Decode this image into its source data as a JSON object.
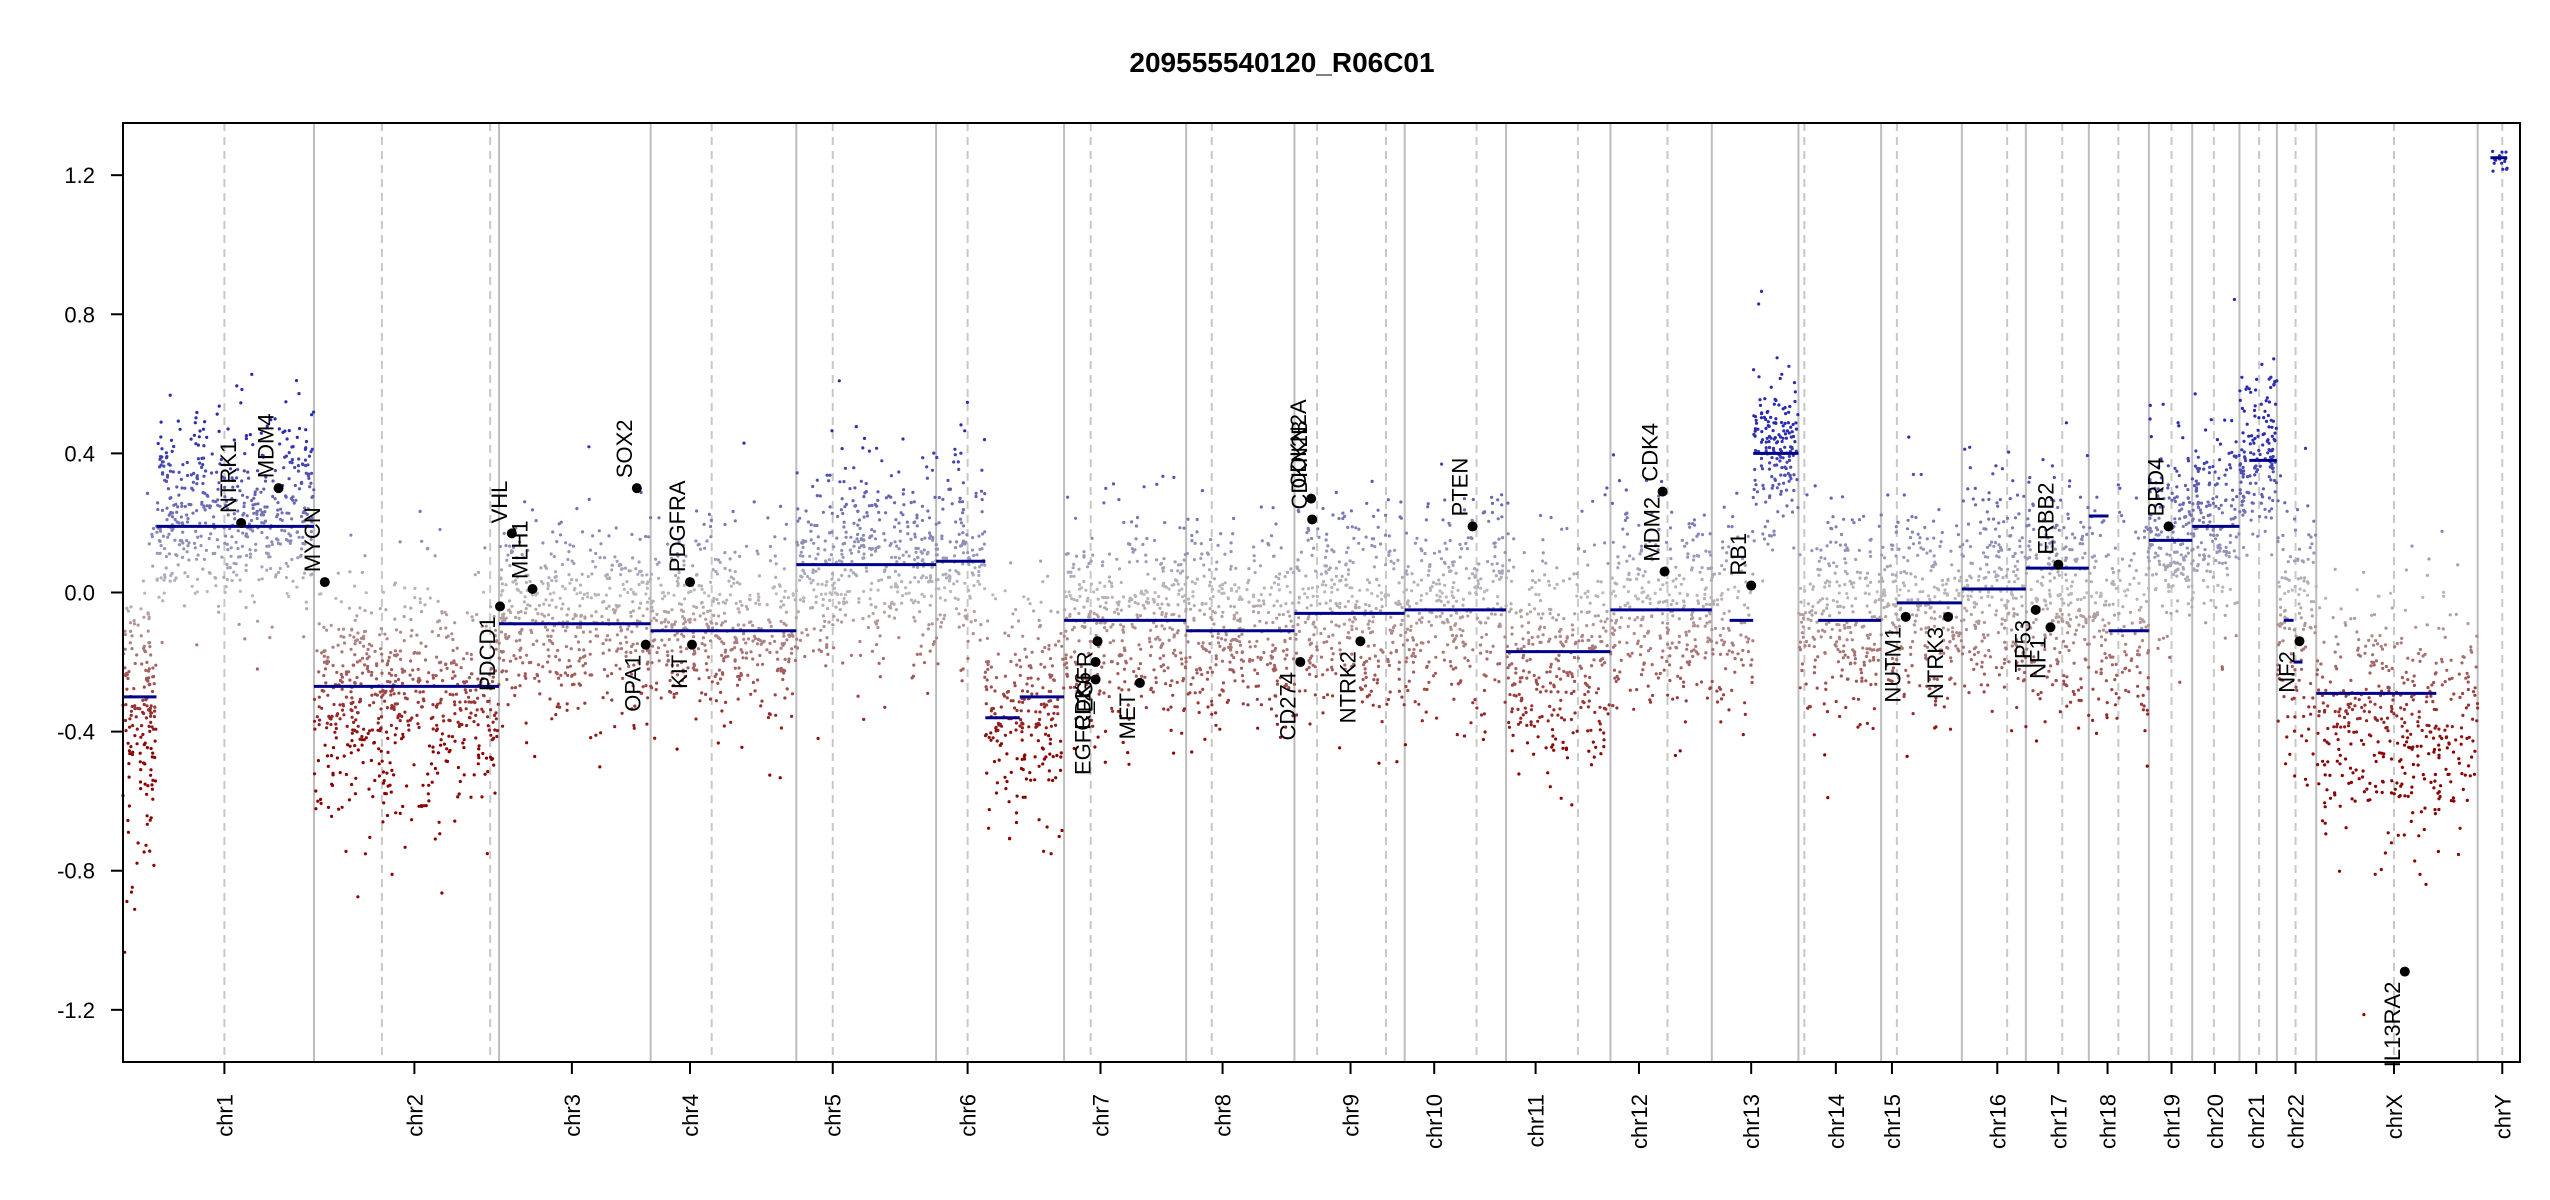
{
  "chart_data": {
    "type": "scatter",
    "title": "209555540120_R06C01",
    "xlabel": "",
    "ylabel": "",
    "ylim": [
      -1.35,
      1.35
    ],
    "yticks": [
      -1.2,
      -0.8,
      -0.4,
      0.0,
      0.4,
      0.8,
      1.2
    ],
    "ytick_labels": [
      "-1.2",
      "-0.8",
      "-0.4",
      "0.0",
      "0.4",
      "0.8",
      "1.2"
    ],
    "colors": {
      "gain": "#2b2bb0",
      "loss": "#8b0000",
      "neutral": "#bbbbbb",
      "segment": "#00008b",
      "gene": "#000000"
    },
    "chromosomes": [
      {
        "name": "chr1",
        "start": 0,
        "end": 194,
        "center": 103
      },
      {
        "name": "chr2",
        "start": 194,
        "end": 382,
        "center": 296
      },
      {
        "name": "chr3",
        "start": 382,
        "end": 536,
        "center": 456
      },
      {
        "name": "chr4",
        "start": 536,
        "end": 684,
        "center": 576
      },
      {
        "name": "chr5",
        "start": 684,
        "end": 826,
        "center": 721
      },
      {
        "name": "chr6",
        "start": 826,
        "end": 956,
        "center": 858
      },
      {
        "name": "chr7",
        "start": 956,
        "end": 1080,
        "center": 993
      },
      {
        "name": "chr8",
        "start": 1080,
        "end": 1190,
        "center": 1117
      },
      {
        "name": "chr9",
        "start": 1190,
        "end": 1302,
        "center": 1247
      },
      {
        "name": "chr10",
        "start": 1302,
        "end": 1405,
        "center": 1332
      },
      {
        "name": "chr11",
        "start": 1405,
        "end": 1511,
        "center": 1435
      },
      {
        "name": "chr12",
        "start": 1511,
        "end": 1614,
        "center": 1540
      },
      {
        "name": "chr13",
        "start": 1614,
        "end": 1702,
        "center": 1654
      },
      {
        "name": "chr14",
        "start": 1702,
        "end": 1786,
        "center": 1740
      },
      {
        "name": "chr15",
        "start": 1786,
        "end": 1868,
        "center": 1797
      },
      {
        "name": "chr16",
        "start": 1868,
        "end": 1933,
        "center": 1904
      },
      {
        "name": "chr17",
        "start": 1933,
        "end": 1997,
        "center": 1966
      },
      {
        "name": "chr18",
        "start": 1997,
        "end": 2058,
        "center": 2016
      },
      {
        "name": "chr19",
        "start": 2058,
        "end": 2102,
        "center": 2081
      },
      {
        "name": "chr20",
        "start": 2102,
        "end": 2150,
        "center": 2125
      },
      {
        "name": "chr21",
        "start": 2150,
        "end": 2188,
        "center": 2167
      },
      {
        "name": "chr22",
        "start": 2188,
        "end": 2228,
        "center": 2207
      },
      {
        "name": "chrX",
        "start": 2228,
        "end": 2392,
        "center": 2307
      },
      {
        "name": "chrY",
        "start": 2392,
        "end": 2435,
        "center": 2417
      }
    ],
    "centromeres": [
      103,
      263,
      373,
      598,
      721,
      858,
      983,
      1106,
      1213,
      1283,
      1375,
      1478,
      1569,
      1708,
      1802,
      1914,
      1970,
      2027,
      2081,
      2124,
      2170,
      2207,
      2307,
      2417
    ],
    "segments": [
      {
        "x0": 0,
        "x1": 34,
        "y": -0.3
      },
      {
        "x0": 34,
        "x1": 194,
        "y": 0.19
      },
      {
        "x0": 194,
        "x1": 382,
        "y": -0.27
      },
      {
        "x0": 382,
        "x1": 536,
        "y": -0.09
      },
      {
        "x0": 536,
        "x1": 684,
        "y": -0.11
      },
      {
        "x0": 684,
        "x1": 826,
        "y": 0.08
      },
      {
        "x0": 826,
        "x1": 876,
        "y": 0.09
      },
      {
        "x0": 876,
        "x1": 911,
        "y": -0.36
      },
      {
        "x0": 911,
        "x1": 956,
        "y": -0.3
      },
      {
        "x0": 956,
        "x1": 1080,
        "y": -0.08
      },
      {
        "x0": 1080,
        "x1": 1190,
        "y": -0.11
      },
      {
        "x0": 1190,
        "x1": 1302,
        "y": -0.06
      },
      {
        "x0": 1302,
        "x1": 1405,
        "y": -0.05
      },
      {
        "x0": 1405,
        "x1": 1511,
        "y": -0.17
      },
      {
        "x0": 1511,
        "x1": 1614,
        "y": -0.05
      },
      {
        "x0": 1632,
        "x1": 1656,
        "y": -0.08
      },
      {
        "x0": 1656,
        "x1": 1702,
        "y": 0.4
      },
      {
        "x0": 1722,
        "x1": 1786,
        "y": -0.08
      },
      {
        "x0": 1802,
        "x1": 1868,
        "y": -0.03
      },
      {
        "x0": 1868,
        "x1": 1933,
        "y": 0.01
      },
      {
        "x0": 1933,
        "x1": 1997,
        "y": 0.07
      },
      {
        "x0": 1997,
        "x1": 2017,
        "y": 0.22
      },
      {
        "x0": 2017,
        "x1": 2058,
        "y": -0.11
      },
      {
        "x0": 2058,
        "x1": 2102,
        "y": 0.15
      },
      {
        "x0": 2102,
        "x1": 2150,
        "y": 0.19
      },
      {
        "x0": 2160,
        "x1": 2188,
        "y": 0.38
      },
      {
        "x0": 2195,
        "x1": 2205,
        "y": -0.08
      },
      {
        "x0": 2205,
        "x1": 2214,
        "y": -0.2
      },
      {
        "x0": 2228,
        "x1": 2350,
        "y": -0.29
      },
      {
        "x0": 2405,
        "x1": 2422,
        "y": 1.25
      }
    ],
    "scatter_regions": [
      {
        "x0": 0,
        "x1": 34,
        "mean": -0.35,
        "sd": 0.22,
        "n": 170
      },
      {
        "x0": 34,
        "x1": 194,
        "mean": 0.22,
        "sd": 0.15,
        "n": 520
      },
      {
        "x0": 194,
        "x1": 382,
        "mean": -0.3,
        "sd": 0.17,
        "n": 620
      },
      {
        "x0": 382,
        "x1": 536,
        "mean": -0.08,
        "sd": 0.14,
        "n": 460
      },
      {
        "x0": 536,
        "x1": 684,
        "mean": -0.1,
        "sd": 0.14,
        "n": 430
      },
      {
        "x0": 684,
        "x1": 826,
        "mean": 0.08,
        "sd": 0.16,
        "n": 430
      },
      {
        "x0": 826,
        "x1": 876,
        "mean": 0.1,
        "sd": 0.15,
        "n": 150
      },
      {
        "x0": 876,
        "x1": 956,
        "mean": -0.35,
        "sd": 0.17,
        "n": 230
      },
      {
        "x0": 956,
        "x1": 1080,
        "mean": -0.08,
        "sd": 0.15,
        "n": 380
      },
      {
        "x0": 1080,
        "x1": 1190,
        "mean": -0.1,
        "sd": 0.14,
        "n": 320
      },
      {
        "x0": 1190,
        "x1": 1302,
        "mean": -0.05,
        "sd": 0.15,
        "n": 320
      },
      {
        "x0": 1302,
        "x1": 1405,
        "mean": -0.05,
        "sd": 0.15,
        "n": 300
      },
      {
        "x0": 1405,
        "x1": 1511,
        "mean": -0.17,
        "sd": 0.18,
        "n": 320
      },
      {
        "x0": 1511,
        "x1": 1614,
        "mean": -0.05,
        "sd": 0.15,
        "n": 300
      },
      {
        "x0": 1614,
        "x1": 1656,
        "mean": -0.08,
        "sd": 0.13,
        "n": 100
      },
      {
        "x0": 1656,
        "x1": 1702,
        "mean": 0.4,
        "sd": 0.13,
        "n": 180
      },
      {
        "x0": 1702,
        "x1": 1786,
        "mean": -0.08,
        "sd": 0.15,
        "n": 250
      },
      {
        "x0": 1786,
        "x1": 1868,
        "mean": -0.03,
        "sd": 0.15,
        "n": 250
      },
      {
        "x0": 1868,
        "x1": 1933,
        "mean": 0.01,
        "sd": 0.15,
        "n": 220
      },
      {
        "x0": 1933,
        "x1": 1997,
        "mean": 0.0,
        "sd": 0.17,
        "n": 240
      },
      {
        "x0": 1997,
        "x1": 2058,
        "mean": -0.08,
        "sd": 0.15,
        "n": 170
      },
      {
        "x0": 2058,
        "x1": 2102,
        "mean": 0.15,
        "sd": 0.14,
        "n": 170
      },
      {
        "x0": 2102,
        "x1": 2150,
        "mean": 0.2,
        "sd": 0.15,
        "n": 170
      },
      {
        "x0": 2150,
        "x1": 2188,
        "mean": 0.38,
        "sd": 0.12,
        "n": 150
      },
      {
        "x0": 2188,
        "x1": 2228,
        "mean": -0.1,
        "sd": 0.2,
        "n": 130
      },
      {
        "x0": 2228,
        "x1": 2392,
        "mean": -0.35,
        "sd": 0.18,
        "n": 430
      },
      {
        "x0": 2405,
        "x1": 2422,
        "mean": 1.25,
        "sd": 0.02,
        "n": 15
      }
    ],
    "genes": [
      {
        "name": "NTRK1",
        "x": 120,
        "y": 0.2
      },
      {
        "name": "MDM4",
        "x": 158,
        "y": 0.3
      },
      {
        "name": "MYCN",
        "x": 205,
        "y": 0.03
      },
      {
        "name": "PDCD1",
        "x": 383,
        "y": -0.04
      },
      {
        "name": "VHL",
        "x": 395,
        "y": 0.17
      },
      {
        "name": "MLH1",
        "x": 416,
        "y": 0.01
      },
      {
        "name": "SOX2",
        "x": 522,
        "y": 0.3
      },
      {
        "name": "OPA1",
        "x": 531,
        "y": -0.15
      },
      {
        "name": "PDGFRA",
        "x": 576,
        "y": 0.03
      },
      {
        "name": "KIT",
        "x": 578,
        "y": -0.15
      },
      {
        "name": "EGFR",
        "x": 990,
        "y": -0.14
      },
      {
        "name": "EGFR_2",
        "x": 988,
        "y": -0.25
      },
      {
        "name": "CDK6",
        "x": 988,
        "y": -0.2
      },
      {
        "name": "MET",
        "x": 1033,
        "y": -0.26
      },
      {
        "name": "CD274",
        "x": 1196,
        "y": -0.2
      },
      {
        "name": "CDKN2A",
        "x": 1207,
        "y": 0.27
      },
      {
        "name": "CDKN2B",
        "x": 1208,
        "y": 0.21
      },
      {
        "name": "NTRK2",
        "x": 1257,
        "y": -0.14
      },
      {
        "name": "PTEN",
        "x": 1371,
        "y": 0.19
      },
      {
        "name": "MDM2",
        "x": 1566,
        "y": 0.06
      },
      {
        "name": "CDK4",
        "x": 1564,
        "y": 0.29
      },
      {
        "name": "RB1",
        "x": 1654,
        "y": 0.02
      },
      {
        "name": "NUTM1",
        "x": 1811,
        "y": -0.07
      },
      {
        "name": "NTRK3",
        "x": 1854,
        "y": -0.07
      },
      {
        "name": "TP53",
        "x": 1943,
        "y": -0.05
      },
      {
        "name": "NF1",
        "x": 1958,
        "y": -0.1
      },
      {
        "name": "ERBB2",
        "x": 1966,
        "y": 0.08
      },
      {
        "name": "BRD4",
        "x": 2078,
        "y": 0.19
      },
      {
        "name": "NF2",
        "x": 2211,
        "y": -0.14
      },
      {
        "name": "IL13RA2",
        "x": 2318,
        "y": -1.09
      }
    ]
  }
}
